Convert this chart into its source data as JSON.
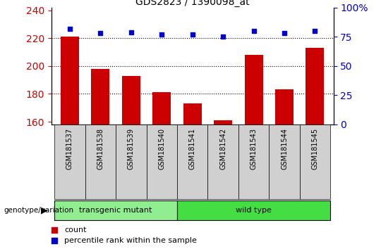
{
  "title": "GDS2823 / 1390098_at",
  "samples": [
    "GSM181537",
    "GSM181538",
    "GSM181539",
    "GSM181540",
    "GSM181541",
    "GSM181542",
    "GSM181543",
    "GSM181544",
    "GSM181545"
  ],
  "counts": [
    221,
    198,
    193,
    181,
    173,
    161,
    208,
    183,
    213
  ],
  "percentile_ranks": [
    82,
    78,
    79,
    77,
    77,
    75,
    80,
    78,
    80
  ],
  "groups": [
    "transgenic mutant",
    "transgenic mutant",
    "transgenic mutant",
    "transgenic mutant",
    "wild type",
    "wild type",
    "wild type",
    "wild type",
    "wild type"
  ],
  "group_colors": {
    "transgenic mutant": "#90EE90",
    "wild type": "#44DD44"
  },
  "bar_color": "#CC0000",
  "dot_color": "#0000CC",
  "ylim_left": [
    158,
    242
  ],
  "ylim_right": [
    0,
    100
  ],
  "yticks_left": [
    160,
    180,
    200,
    220,
    240
  ],
  "yticks_right": [
    0,
    25,
    50,
    75,
    100
  ],
  "grid_values": [
    180,
    200,
    220
  ],
  "xlabel_bg": "#D0D0D0",
  "group_label": "genotype/variation",
  "legend_items": [
    {
      "label": "count",
      "color": "#CC0000"
    },
    {
      "label": "percentile rank within the sample",
      "color": "#0000CC"
    }
  ]
}
